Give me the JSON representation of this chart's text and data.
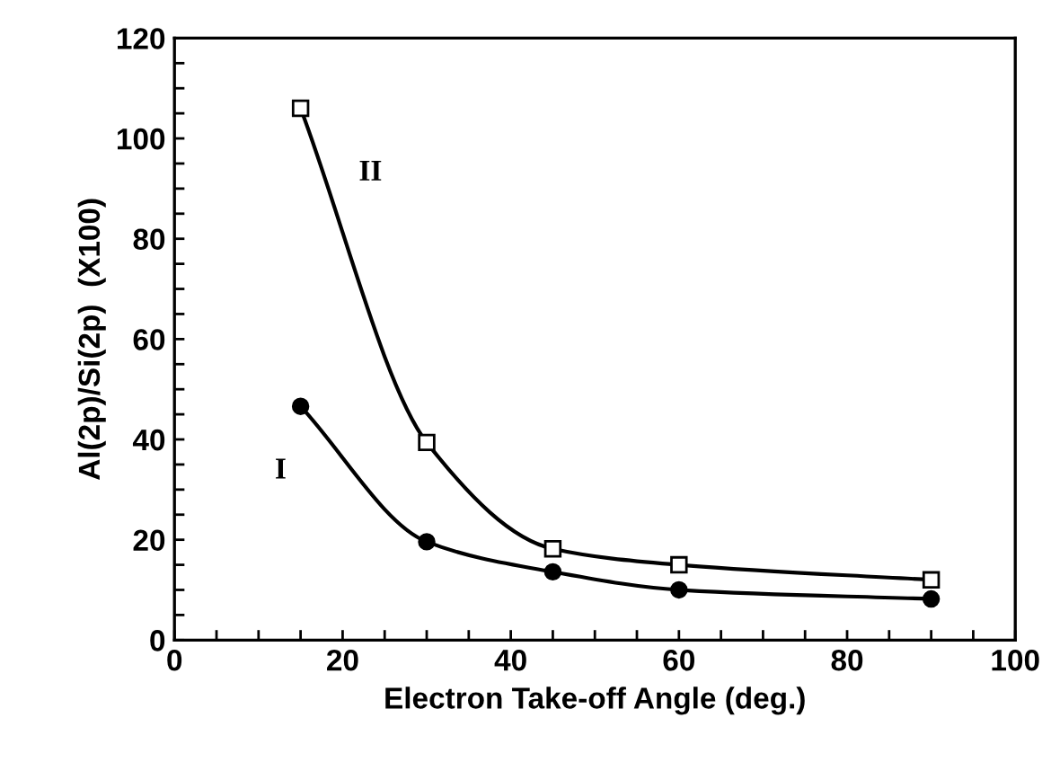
{
  "chart_data": {
    "type": "line",
    "xlabel": "Electron Take-off Angle (deg.)",
    "ylabel": "Al(2p)/Si(2p)  (X100)",
    "series": [
      {
        "name": "I",
        "color": "#000000",
        "marker": "circle",
        "x": [
          15,
          30,
          45,
          60,
          90
        ],
        "values": [
          46.6,
          19.6,
          13.6,
          10,
          8.2
        ]
      },
      {
        "name": "II",
        "color": "#000000",
        "marker": "square",
        "x": [
          15,
          30,
          45,
          60,
          90
        ],
        "values": [
          106,
          39.4,
          18.2,
          15,
          12
        ]
      }
    ],
    "xlim": [
      0,
      100
    ],
    "ylim": [
      0,
      120
    ],
    "xticks": [
      0,
      {
        "value": 5,
        "label": null
      },
      {
        "value": 10,
        "label": null
      },
      {
        "value": 15,
        "label": null
      },
      20,
      {
        "value": 25,
        "label": null
      },
      {
        "value": 30,
        "label": null
      },
      {
        "value": 35,
        "label": null
      },
      40,
      {
        "value": 45,
        "label": null
      },
      {
        "value": 50,
        "label": null
      },
      {
        "value": 55,
        "label": null
      },
      60,
      {
        "value": 65,
        "label": null
      },
      {
        "value": 70,
        "label": null
      },
      {
        "value": 75,
        "label": null
      },
      80,
      {
        "value": 85,
        "label": null
      },
      {
        "value": 90,
        "label": null
      },
      {
        "value": 95,
        "label": null
      },
      100
    ],
    "yticks": [
      0,
      {
        "value": 5,
        "label": null
      },
      {
        "value": 10,
        "label": null
      },
      {
        "value": 15,
        "label": null
      },
      20,
      {
        "value": 25,
        "label": null
      },
      {
        "value": 30,
        "label": null
      },
      {
        "value": 35,
        "label": null
      },
      40,
      {
        "value": 45,
        "label": null
      },
      {
        "value": 50,
        "label": null
      },
      {
        "value": 55,
        "label": null
      },
      60,
      {
        "value": 65,
        "label": null
      },
      {
        "value": 70,
        "label": null
      },
      {
        "value": 75,
        "label": null
      },
      80,
      {
        "value": 85,
        "label": null
      },
      {
        "value": 90,
        "label": null
      },
      {
        "value": 95,
        "label": null
      },
      100,
      {
        "value": 105,
        "label": null
      },
      {
        "value": 110,
        "label": null
      },
      {
        "value": 115,
        "label": null
      },
      120
    ],
    "line_style": "solid"
  }
}
